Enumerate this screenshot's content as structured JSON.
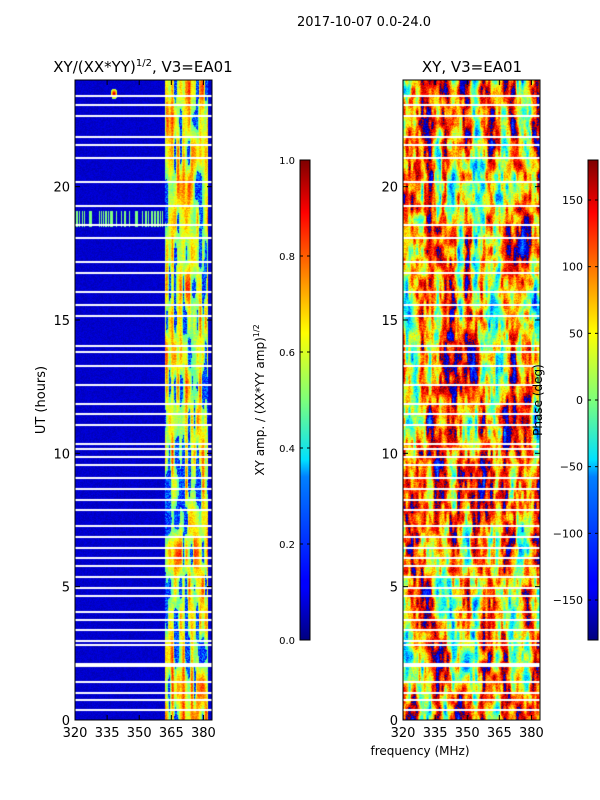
{
  "suptitle": "2017-10-07 0.0-24.0",
  "shared_xlabel": "frequency (MHz)",
  "chart_data": [
    {
      "type": "heatmap",
      "title": "XY/(XX*YY)",
      "title_exponent": "1/2",
      "title_suffix": ", V3=EA01",
      "xlabel": "",
      "ylabel": "UT (hours)",
      "xlim": [
        320,
        384
      ],
      "ylim": [
        0,
        24
      ],
      "xticks": [
        320,
        335,
        350,
        365,
        380
      ],
      "yticks": [
        0,
        5,
        10,
        15,
        20
      ],
      "colormap": "jet",
      "colorbar": {
        "label": "XY amp. / (XX*YY amp)",
        "label_exponent": "1/2",
        "range": [
          0.0,
          1.0
        ],
        "ticks": [
          "0.0",
          "0.2",
          "0.4",
          "0.6",
          "0.8",
          "1.0"
        ],
        "tick_values": [
          0.0,
          0.2,
          0.4,
          0.6,
          0.8,
          1.0
        ]
      },
      "description_values": {
        "background_level": 0.05,
        "rfi_band_MHz": [
          362,
          382
        ],
        "rfi_band_level": 0.5,
        "hot_spot": {
          "freq": 338,
          "time": 23.5,
          "level": 1.0
        }
      }
    },
    {
      "type": "heatmap",
      "title": "XY, V3=EA01",
      "xlabel": "frequency (MHz)",
      "ylabel": "",
      "xlim": [
        320,
        384
      ],
      "ylim": [
        0,
        24
      ],
      "xticks": [
        320,
        335,
        350,
        365,
        380
      ],
      "yticks": [
        0,
        5,
        10,
        15,
        20
      ],
      "colormap": "jet",
      "colorbar": {
        "label": "Phase (deg)",
        "range": [
          -180,
          180
        ],
        "ticks": [
          "−150",
          "−100",
          "−50",
          "0",
          "50",
          "100",
          "150"
        ],
        "tick_values": [
          -150,
          -100,
          -50,
          0,
          50,
          100,
          150
        ]
      }
    }
  ],
  "flagged_rows_hours": [
    23.45,
    23.1,
    22.7,
    21.9,
    21.6,
    21.1,
    20.2,
    19.3,
    18.6,
    18.1,
    17.2,
    16.8,
    16.1,
    15.6,
    15.2,
    14.05,
    13.85,
    13.3,
    12.6,
    11.9,
    11.5,
    11.1,
    10.4,
    10.2,
    9.9,
    9.6,
    9.1,
    8.7,
    8.3,
    7.9,
    7.3,
    6.9,
    6.5,
    6.1,
    5.8,
    5.4,
    5.0,
    4.7,
    4.1,
    3.8,
    3.4,
    3.0,
    2.85,
    2.15,
    2.05,
    1.45,
    1.05,
    0.8,
    0.4
  ]
}
